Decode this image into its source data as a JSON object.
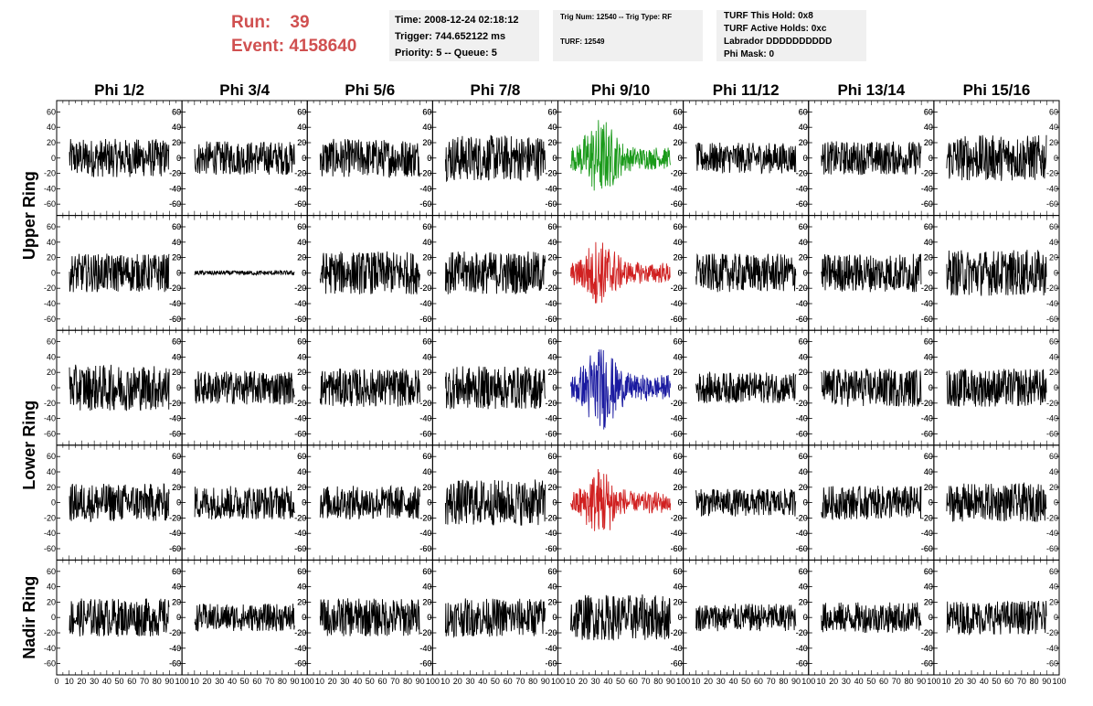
{
  "header": {
    "run_label": "Run:",
    "run_value": "39",
    "event_label": "Event:",
    "event_value": "4158640",
    "info_boxes": {
      "time": [
        "Time: 2008-12-24 02:18:12",
        "Trigger: 744.652122 ms",
        "Priority: 5 -- Queue: 5"
      ],
      "trig": [
        "Trig Num: 12540 -- Trig Type: RF",
        "TURF: 12549"
      ],
      "turf": [
        "TURF This Hold: 0x8",
        "TURF Active Holds: 0xc",
        "Labrador DDDDDDDDDD",
        "Phi Mask: 0"
      ]
    }
  },
  "colors": {
    "header_red": "#d05050",
    "trace_default": "#000000",
    "trace_green": "#1a9a1a",
    "trace_red": "#d02020",
    "trace_blue": "#1a1aa0",
    "box_bg": "#f0f0f0"
  },
  "chart_data": {
    "type": "line",
    "columns": [
      "Phi 1/2",
      "Phi 3/4",
      "Phi 5/6",
      "Phi 7/8",
      "Phi 9/10",
      "Phi 11/12",
      "Phi 13/14",
      "Phi 15/16"
    ],
    "ring_labels": [
      "Upper Ring",
      "Lower Ring",
      "Nadir Ring"
    ],
    "ylim": [
      -70,
      70
    ],
    "yticks": [
      -60,
      -40,
      -20,
      0,
      20,
      40,
      60
    ],
    "xlim": [
      0,
      100
    ],
    "xtick_labels": [
      "0",
      "10",
      "20",
      "30",
      "40",
      "50",
      "60",
      "70",
      "80",
      "90",
      "100"
    ],
    "panel_rows": [
      {
        "ring": "Upper Ring",
        "amplitudes": [
          25,
          22,
          25,
          30,
          45,
          20,
          22,
          30
        ],
        "colors": [
          "#000000",
          "#000000",
          "#000000",
          "#000000",
          "#1a9a1a",
          "#000000",
          "#000000",
          "#000000"
        ]
      },
      {
        "ring": "Upper Ring",
        "amplitudes": [
          25,
          3,
          28,
          28,
          40,
          25,
          25,
          30
        ],
        "colors": [
          "#000000",
          "#000000",
          "#000000",
          "#000000",
          "#d02020",
          "#000000",
          "#000000",
          "#000000"
        ]
      },
      {
        "ring": "Lower Ring",
        "amplitudes": [
          30,
          22,
          25,
          28,
          50,
          20,
          25,
          25
        ],
        "colors": [
          "#000000",
          "#000000",
          "#000000",
          "#000000",
          "#1a1aa0",
          "#000000",
          "#000000",
          "#000000"
        ]
      },
      {
        "ring": "Lower Ring",
        "amplitudes": [
          25,
          22,
          22,
          30,
          42,
          18,
          22,
          25
        ],
        "colors": [
          "#000000",
          "#000000",
          "#000000",
          "#000000",
          "#d02020",
          "#000000",
          "#000000",
          "#000000"
        ]
      },
      {
        "ring": "Nadir Ring",
        "amplitudes": [
          25,
          18,
          25,
          25,
          30,
          18,
          20,
          22
        ],
        "colors": [
          "#000000",
          "#000000",
          "#000000",
          "#000000",
          "#000000",
          "#000000",
          "#000000",
          "#000000"
        ]
      }
    ]
  }
}
